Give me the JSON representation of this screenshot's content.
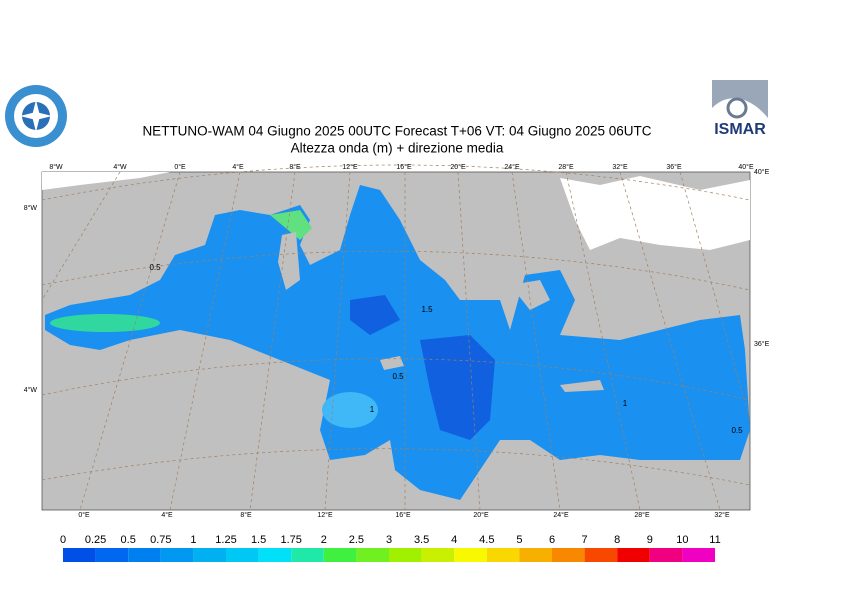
{
  "header": {
    "title": "NETTUNO-WAM  04   Giugno  2025 00UTC Forecast T+06 VT: 04   Giugno  2025 06UTC",
    "subtitle": "Altezza onda (m) + direzione media"
  },
  "logo_right": "ISMAR",
  "map": {
    "top_labels": [
      "8°W",
      "4°W",
      "0°E",
      "4°E",
      "8°E",
      "12°E",
      "16°E",
      "20°E",
      "24°E",
      "28°E",
      "32°E",
      "36°E",
      "40°E"
    ],
    "bottom_labels": [
      "0°E",
      "4°E",
      "8°E",
      "12°E",
      "16°E",
      "20°E",
      "24°E",
      "28°E",
      "32°E"
    ],
    "left_labels": [
      "8°W",
      "4°W"
    ],
    "right_labels": [
      "40°E",
      "36°E"
    ],
    "contour_labels": [
      0.5,
      1.5,
      0.5,
      1,
      1,
      0.5
    ]
  },
  "legend": {
    "levels": [
      0,
      0.25,
      0.5,
      0.75,
      1,
      1.25,
      1.5,
      1.75,
      2,
      2.5,
      3,
      3.5,
      4,
      4.5,
      5,
      6,
      7,
      8,
      9,
      10,
      11
    ],
    "colors": [
      "#0050e8",
      "#0068f0",
      "#0080f0",
      "#0098f0",
      "#00b0f0",
      "#00c8f4",
      "#00e0f8",
      "#20e8a8",
      "#40f040",
      "#70f020",
      "#a0f000",
      "#c8f000",
      "#f8f800",
      "#f8d800",
      "#f8b000",
      "#f88800",
      "#f84800",
      "#f00000",
      "#f00080",
      "#f000c0"
    ]
  }
}
